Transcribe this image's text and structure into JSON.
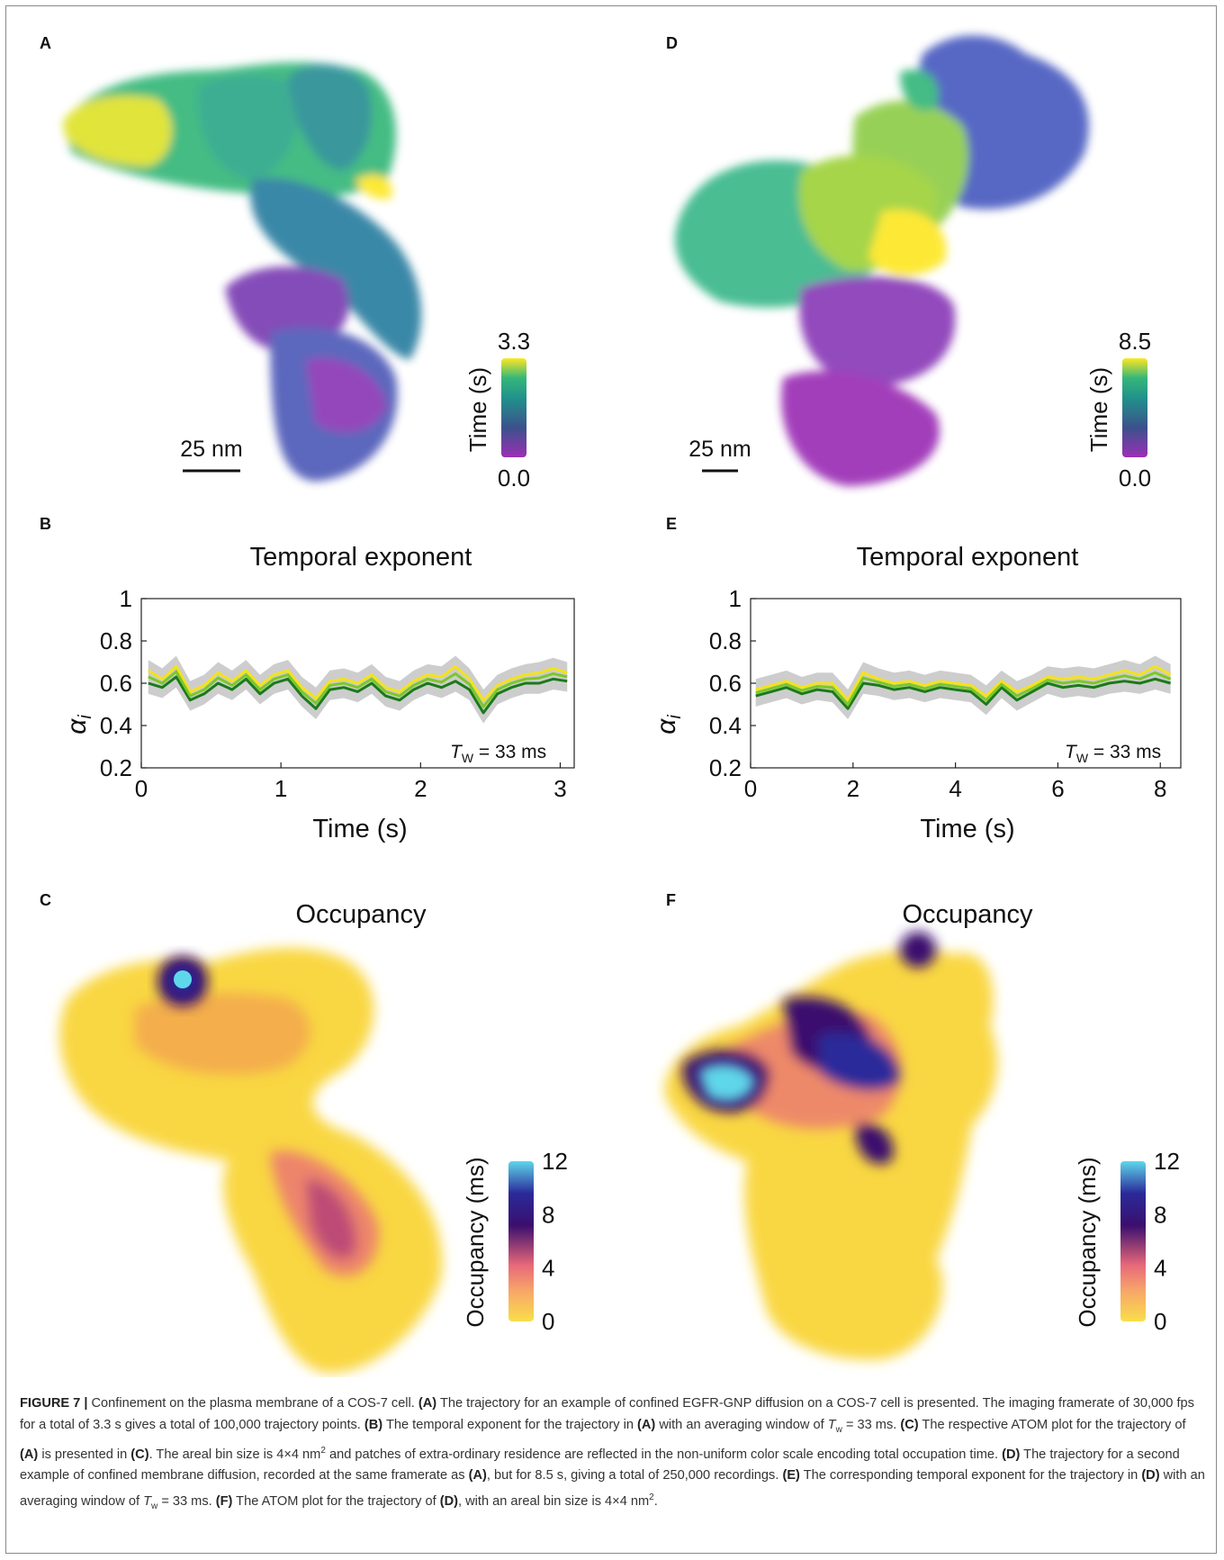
{
  "panels": {
    "A": {
      "letter": "A",
      "scalebar": "25 nm",
      "colorbar_title": "Time (s)",
      "cb_max": "3.3",
      "cb_min": "0.0"
    },
    "D": {
      "letter": "D",
      "scalebar": "25 nm",
      "colorbar_title": "Time (s)",
      "cb_max": "8.5",
      "cb_min": "0.0"
    },
    "B": {
      "letter": "B",
      "title": "Temporal exponent",
      "xlabel": "Time (s)",
      "ylabel": "α",
      "ylabel_sub": "i",
      "annotation_T": "T",
      "annotation_sub": "W",
      "annotation_rest": " = 33 ms"
    },
    "E": {
      "letter": "E",
      "title": "Temporal exponent",
      "xlabel": "Time (s)",
      "ylabel": "α",
      "ylabel_sub": "i",
      "annotation_T": "T",
      "annotation_sub": "W",
      "annotation_rest": " = 33 ms"
    },
    "C": {
      "letter": "C",
      "title": "Occupancy",
      "colorbar_title": "Occupancy (ms)"
    },
    "F": {
      "letter": "F",
      "title": "Occupancy",
      "colorbar_title": "Occupancy (ms)"
    }
  },
  "colors": {
    "viridis": [
      "#fde725",
      "#35b779",
      "#21918c",
      "#3b528b",
      "#9b2fb5"
    ],
    "plasma_occ": [
      "#f9df4a",
      "#f7a36a",
      "#e8697a",
      "#3a0f6e",
      "#2a2a9a",
      "#5fd7ea"
    ],
    "line_yellow": "#f4e21d",
    "line_green": "#7cc72a",
    "line_dark": "#1a7a1a",
    "band": "#c8c8c8"
  },
  "chart_data": [
    {
      "panel": "B",
      "type": "line",
      "title": "Temporal exponent",
      "xlabel": "Time (s)",
      "ylabel": "αi",
      "xlim": [
        0,
        3.1
      ],
      "ylim": [
        0.2,
        1
      ],
      "x_ticks": [
        0,
        1,
        2,
        3
      ],
      "y_ticks": [
        0.2,
        0.4,
        0.6,
        0.8,
        1
      ],
      "y_tick_labels": [
        "0.2",
        "0.4",
        "0.6",
        "0.8",
        "1"
      ],
      "grid": false,
      "annotation": "TW = 33 ms",
      "x": [
        0.05,
        0.15,
        0.25,
        0.35,
        0.45,
        0.55,
        0.65,
        0.75,
        0.85,
        0.95,
        1.05,
        1.15,
        1.25,
        1.35,
        1.45,
        1.55,
        1.65,
        1.75,
        1.85,
        1.95,
        2.05,
        2.15,
        2.25,
        2.35,
        2.45,
        2.55,
        2.65,
        2.75,
        2.85,
        2.95,
        3.05
      ],
      "series": [
        {
          "values": [
            0.6,
            0.58,
            0.63,
            0.52,
            0.55,
            0.6,
            0.57,
            0.62,
            0.55,
            0.6,
            0.62,
            0.54,
            0.48,
            0.57,
            0.58,
            0.56,
            0.6,
            0.54,
            0.52,
            0.57,
            0.6,
            0.58,
            0.61,
            0.57,
            0.46,
            0.55,
            0.58,
            0.6,
            0.6,
            0.62,
            0.61
          ]
        },
        {
          "values": [
            0.66,
            0.62,
            0.68,
            0.56,
            0.59,
            0.65,
            0.61,
            0.66,
            0.59,
            0.64,
            0.66,
            0.58,
            0.53,
            0.61,
            0.62,
            0.6,
            0.64,
            0.58,
            0.56,
            0.61,
            0.64,
            0.63,
            0.68,
            0.62,
            0.52,
            0.59,
            0.62,
            0.64,
            0.65,
            0.67,
            0.65
          ]
        }
      ]
    },
    {
      "panel": "E",
      "type": "line",
      "title": "Temporal exponent",
      "xlabel": "Time (s)",
      "ylabel": "αi",
      "xlim": [
        0,
        8.4
      ],
      "ylim": [
        0.2,
        1
      ],
      "x_ticks": [
        0,
        2,
        4,
        6,
        8
      ],
      "y_ticks": [
        0.2,
        0.4,
        0.6,
        0.8,
        1
      ],
      "y_tick_labels": [
        "0.2",
        "0.4",
        "0.6",
        "0.8",
        "1"
      ],
      "grid": false,
      "annotation": "TW = 33 ms",
      "x": [
        0.1,
        0.4,
        0.7,
        1.0,
        1.3,
        1.6,
        1.9,
        2.2,
        2.5,
        2.8,
        3.1,
        3.4,
        3.7,
        4.0,
        4.3,
        4.6,
        4.9,
        5.2,
        5.5,
        5.8,
        6.1,
        6.4,
        6.7,
        7.0,
        7.3,
        7.6,
        7.9,
        8.2
      ],
      "series": [
        {
          "values": [
            0.54,
            0.56,
            0.58,
            0.55,
            0.57,
            0.56,
            0.48,
            0.6,
            0.59,
            0.57,
            0.58,
            0.56,
            0.58,
            0.57,
            0.56,
            0.5,
            0.58,
            0.52,
            0.56,
            0.6,
            0.58,
            0.59,
            0.58,
            0.6,
            0.61,
            0.6,
            0.62,
            0.6
          ]
        },
        {
          "values": [
            0.57,
            0.59,
            0.61,
            0.58,
            0.6,
            0.6,
            0.52,
            0.65,
            0.62,
            0.6,
            0.61,
            0.59,
            0.61,
            0.6,
            0.59,
            0.54,
            0.61,
            0.56,
            0.59,
            0.63,
            0.62,
            0.63,
            0.62,
            0.64,
            0.66,
            0.64,
            0.68,
            0.64
          ]
        }
      ]
    },
    {
      "panel": "A",
      "type": "scatter",
      "colorbar_title": "Time (s)",
      "colorbar_range": [
        0.0,
        3.3
      ],
      "scale_bar": "25 nm"
    },
    {
      "panel": "D",
      "type": "scatter",
      "colorbar_title": "Time (s)",
      "colorbar_range": [
        0.0,
        8.5
      ],
      "scale_bar": "25 nm"
    },
    {
      "panel": "C",
      "type": "heatmap",
      "title": "Occupancy",
      "colorbar_title": "Occupancy (ms)",
      "colorbar_ticks": [
        "0",
        "4",
        "8",
        "12"
      ]
    },
    {
      "panel": "F",
      "type": "heatmap",
      "title": "Occupancy",
      "colorbar_title": "Occupancy (ms)",
      "colorbar_ticks": [
        "0",
        "4",
        "8",
        "12"
      ]
    }
  ],
  "caption": {
    "figure_label": "FIGURE 7 |",
    "p1": " Confinement on the plasma membrane of a COS-7 cell. ",
    "A1": "(A)",
    "p2": " The trajectory for an example of confined EGFR-GNP diffusion on a COS-7 cell is presented. The imaging framerate of 30,000  fps for a total of 3.3 s gives a total of 100,000 trajectory points. ",
    "B1": "(B)",
    "p3": " The temporal exponent for the trajectory in ",
    "A2": "(A)",
    "p4": " with an averaging window of ",
    "tw1": "T",
    "tw1sub": "w",
    "p5": " = 33 ms. ",
    "C1": "(C)",
    "p6": " The respective ATOM plot for the trajectory of ",
    "A3": "(A)",
    "p7": " is presented in ",
    "C2": "(C)",
    "p8": ". The areal bin size is 4×4 nm",
    "sup1": "2",
    "p9": " and patches of extra-ordinary residence are reflected in the non-uniform color scale encoding total occupation time. ",
    "D1": "(D)",
    "p10": " The trajectory for a second example of confined membrane diffusion, recorded at the same framerate as ",
    "A4": "(A)",
    "p11": ", but for 8.5 s, giving a total of 250,000 recordings. ",
    "E1": "(E)",
    "p12": " The corresponding temporal exponent for the trajectory in ",
    "D2": "(D)",
    "p13": " with an averaging window of ",
    "tw2": "T",
    "tw2sub": "w",
    "p14": " = 33 ms. ",
    "F1": "(F)",
    "p15": " The ATOM plot for the trajectory of ",
    "D3": "(D)",
    "p16": ", with an areal bin size is 4×4 nm",
    "sup2": "2",
    "p17": "."
  }
}
